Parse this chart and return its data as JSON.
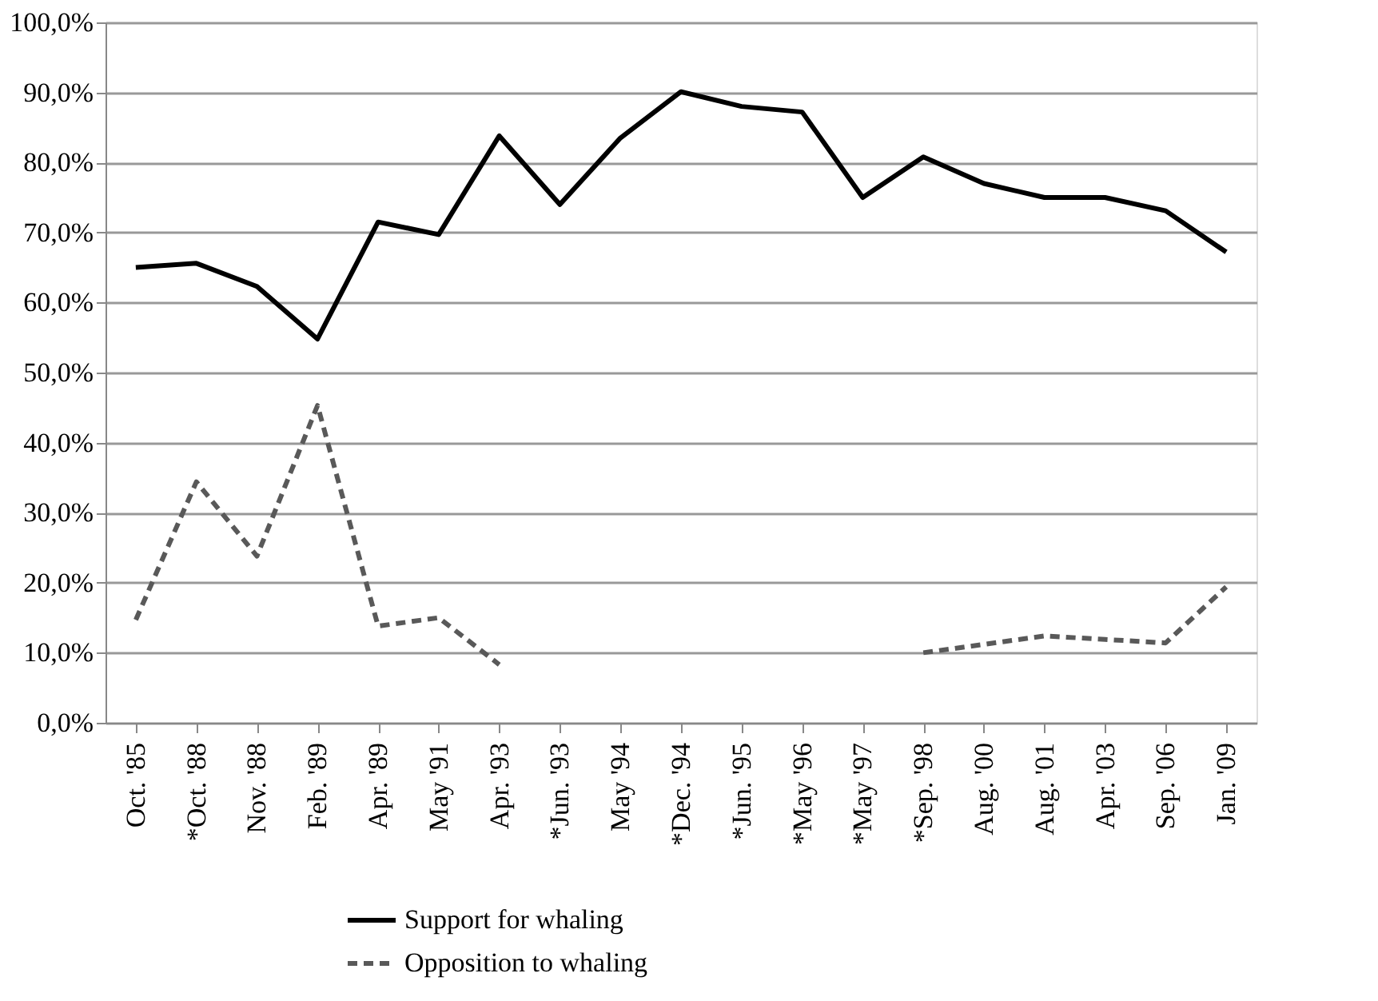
{
  "chart_data": {
    "type": "line",
    "categories": [
      "Oct. '85",
      "*Oct. '88",
      "Nov. '88",
      "Feb. '89",
      "Apr. '89",
      "May '91",
      "Apr. '93",
      "*Jun. '93",
      "May '94",
      "*Dec. '94",
      "*Jun. '95",
      "*May '96",
      "*May '97",
      "*Sep. '98",
      "Aug. '00",
      "Aug. '01",
      "Apr. '03",
      "Sep. '06",
      "Jan. '09"
    ],
    "series": [
      {
        "name": "Support for whaling",
        "color": "#000000",
        "line_style": "solid",
        "values": [
          65,
          65.6,
          62.3,
          54.8,
          71.5,
          69.7,
          83.8,
          74,
          83.5,
          90.1,
          88,
          87.2,
          75,
          80.8,
          77,
          75,
          75,
          73.1,
          67.2
        ]
      },
      {
        "name": "Opposition  to whaling",
        "color": "#595959",
        "line_style": "dashed",
        "values": [
          14.7,
          34.4,
          23.8,
          45.3,
          13.8,
          15,
          8.3,
          null,
          null,
          null,
          null,
          null,
          null,
          10,
          11.2,
          12.4,
          11.9,
          11.4,
          19.4
        ]
      }
    ],
    "ylim": [
      0,
      100
    ],
    "yticks": [
      {
        "value": 0,
        "label": "0,0%"
      },
      {
        "value": 10,
        "label": "10,0%"
      },
      {
        "value": 20,
        "label": "20,0%"
      },
      {
        "value": 30,
        "label": "30,0%"
      },
      {
        "value": 40,
        "label": "40,0%"
      },
      {
        "value": 50,
        "label": "50,0%"
      },
      {
        "value": 60,
        "label": "60,0%"
      },
      {
        "value": 70,
        "label": "70,0%"
      },
      {
        "value": 80,
        "label": "80,0%"
      },
      {
        "value": 90,
        "label": "90,0%"
      },
      {
        "value": 100,
        "label": "100,0%"
      }
    ],
    "grid": "y",
    "legend": "bottom",
    "marker": "none"
  }
}
